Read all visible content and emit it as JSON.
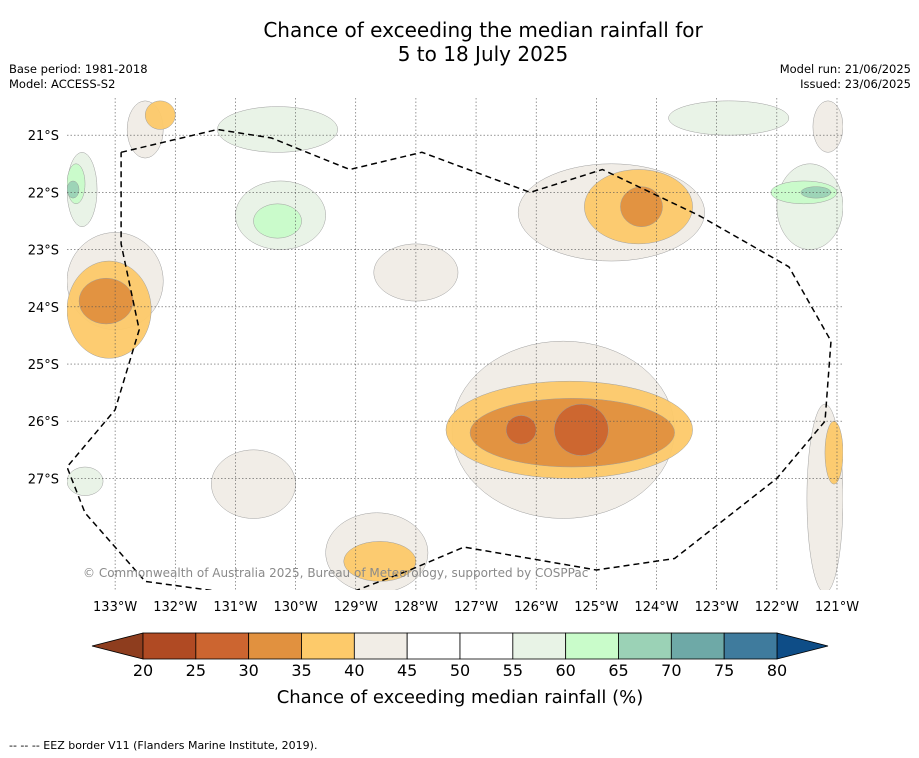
{
  "title": {
    "line1": "Chance of exceeding the median rainfall for",
    "line2": "5 to 18 July 2025"
  },
  "info_left": {
    "base_period": "Base period: 1981-2018",
    "model": "Model: ACCESS-S2"
  },
  "info_right": {
    "model_run": "Model run: 21/06/2025",
    "issued": "Issued: 23/06/2025"
  },
  "map": {
    "lon_range": [
      -133.8,
      -120.9
    ],
    "lat_range": [
      -28.95,
      -20.35
    ],
    "lon_ticks": [
      {
        "lon": -133,
        "label": "133°W"
      },
      {
        "lon": -132,
        "label": "132°W"
      },
      {
        "lon": -131,
        "label": "131°W"
      },
      {
        "lon": -130,
        "label": "130°W"
      },
      {
        "lon": -129,
        "label": "129°W"
      },
      {
        "lon": -128,
        "label": "128°W"
      },
      {
        "lon": -127,
        "label": "127°W"
      },
      {
        "lon": -126,
        "label": "126°W"
      },
      {
        "lon": -125,
        "label": "125°W"
      },
      {
        "lon": -124,
        "label": "124°W"
      },
      {
        "lon": -123,
        "label": "123°W"
      },
      {
        "lon": -122,
        "label": "122°W"
      },
      {
        "lon": -121,
        "label": "121°W"
      }
    ],
    "lat_ticks": [
      {
        "lat": -21,
        "label": "21°S"
      },
      {
        "lat": -22,
        "label": "22°S"
      },
      {
        "lat": -23,
        "label": "23°S"
      },
      {
        "lat": -24,
        "label": "24°S"
      },
      {
        "lat": -25,
        "label": "25°S"
      },
      {
        "lat": -26,
        "label": "26°S"
      },
      {
        "lat": -27,
        "label": "27°S"
      }
    ],
    "copyright": "© Commonwealth of Australia 2025, Bureau of Meteorology, supported by COSPPac",
    "field_levels": [
      {
        "name": "40-45",
        "color": "#f1ede6",
        "cells": [
          [
            -133.8,
            -24.4,
            -132.2,
            -22.7
          ],
          [
            -128.7,
            -23.9,
            -127.3,
            -22.9
          ],
          [
            -132.8,
            -21.4,
            -132.2,
            -20.4
          ],
          [
            -126.3,
            -23.2,
            -123.2,
            -21.5
          ],
          [
            -121.4,
            -21.3,
            -120.9,
            -20.4
          ],
          [
            -121.5,
            -29.0,
            -120.9,
            -25.7
          ],
          [
            -127.4,
            -27.7,
            -123.7,
            -24.6
          ],
          [
            -131.4,
            -27.7,
            -130.0,
            -26.5
          ],
          [
            -129.5,
            -29.0,
            -127.8,
            -27.6
          ]
        ]
      },
      {
        "name": "35-40",
        "color": "#fdca6a",
        "cells": [
          [
            -133.8,
            -24.9,
            -132.4,
            -23.2
          ],
          [
            -125.2,
            -22.9,
            -123.4,
            -21.6
          ],
          [
            -127.5,
            -27.0,
            -123.4,
            -25.3
          ],
          [
            -121.2,
            -27.1,
            -120.9,
            -26.0
          ],
          [
            -129.2,
            -28.8,
            -128.0,
            -28.1
          ],
          [
            -132.5,
            -20.9,
            -132.0,
            -20.4
          ]
        ]
      },
      {
        "name": "30-35",
        "color": "#e1913f",
        "cells": [
          [
            -133.6,
            -24.3,
            -132.7,
            -23.5
          ],
          [
            -124.6,
            -22.6,
            -123.9,
            -21.9
          ],
          [
            -127.1,
            -26.8,
            -123.7,
            -25.6
          ]
        ]
      },
      {
        "name": "25-30",
        "color": "#cc6530",
        "cells": [
          [
            -126.5,
            -26.4,
            -126.0,
            -25.9
          ],
          [
            -125.7,
            -26.6,
            -124.8,
            -25.7
          ]
        ]
      },
      {
        "name": "55-60",
        "color": "#e8f3e6",
        "cells": [
          [
            -133.8,
            -22.6,
            -133.3,
            -21.3
          ],
          [
            -131.0,
            -23.0,
            -129.5,
            -21.8
          ],
          [
            -131.3,
            -21.3,
            -129.3,
            -20.5
          ],
          [
            -122.0,
            -23.0,
            -120.9,
            -21.5
          ],
          [
            -123.8,
            -21.0,
            -121.8,
            -20.4
          ],
          [
            -133.8,
            -27.3,
            -133.2,
            -26.8
          ]
        ]
      },
      {
        "name": "60-65",
        "color": "#c9fcca",
        "cells": [
          [
            -133.8,
            -22.2,
            -133.5,
            -21.5
          ],
          [
            -130.7,
            -22.8,
            -129.9,
            -22.2
          ],
          [
            -122.1,
            -22.2,
            -121.0,
            -21.8
          ]
        ]
      },
      {
        "name": "65-70",
        "color": "#9bd2b6",
        "cells": [
          [
            -133.8,
            -22.1,
            -133.6,
            -21.8
          ],
          [
            -121.6,
            -22.1,
            -121.1,
            -21.9
          ]
        ]
      }
    ],
    "eez_border": [
      [
        -132.9,
        -21.3
      ],
      [
        -131.3,
        -20.9
      ],
      [
        -130.4,
        -21.05
      ],
      [
        -129.1,
        -21.6
      ],
      [
        -127.9,
        -21.3
      ],
      [
        -126.1,
        -22.0
      ],
      [
        -124.9,
        -21.6
      ],
      [
        -123.3,
        -22.4
      ],
      [
        -121.8,
        -23.3
      ],
      [
        -121.1,
        -24.6
      ],
      [
        -121.2,
        -26.0
      ],
      [
        -122.0,
        -27.0
      ],
      [
        -123.7,
        -28.4
      ],
      [
        -125.0,
        -28.6
      ],
      [
        -126.1,
        -28.4
      ],
      [
        -127.2,
        -28.2
      ],
      [
        -128.1,
        -28.6
      ],
      [
        -129.1,
        -29.0
      ],
      [
        -130.4,
        -29.1
      ],
      [
        -132.5,
        -28.8
      ],
      [
        -133.5,
        -27.6
      ],
      [
        -133.8,
        -26.8
      ],
      [
        -133.0,
        -25.8
      ],
      [
        -132.6,
        -24.4
      ],
      [
        -132.9,
        -22.9
      ],
      [
        -132.9,
        -21.3
      ]
    ]
  },
  "colorbar": {
    "label": "Chance of exceeding median rainfall (%)",
    "under_color": "#8e3d1e",
    "over_color": "#0e4d87",
    "segments": [
      {
        "from": 20,
        "to": 25,
        "color": "#b04a23"
      },
      {
        "from": 25,
        "to": 30,
        "color": "#cc6530"
      },
      {
        "from": 30,
        "to": 35,
        "color": "#e1913f"
      },
      {
        "from": 35,
        "to": 40,
        "color": "#fdca6a"
      },
      {
        "from": 40,
        "to": 45,
        "color": "#f1ede6"
      },
      {
        "from": 45,
        "to": 50,
        "color": "#ffffff"
      },
      {
        "from": 50,
        "to": 55,
        "color": "#ffffff"
      },
      {
        "from": 55,
        "to": 60,
        "color": "#e8f3e6"
      },
      {
        "from": 60,
        "to": 65,
        "color": "#c9fcca"
      },
      {
        "from": 65,
        "to": 70,
        "color": "#9bd2b6"
      },
      {
        "from": 70,
        "to": 75,
        "color": "#6ea9a7"
      },
      {
        "from": 75,
        "to": 80,
        "color": "#3f7b9d"
      }
    ],
    "ticks": [
      "20",
      "25",
      "30",
      "35",
      "40",
      "45",
      "50",
      "55",
      "60",
      "65",
      "70",
      "75",
      "80"
    ]
  },
  "footer": {
    "eez_legend": "--  --  -- EEZ border V11 (Flanders Marine Institute, 2019)."
  }
}
